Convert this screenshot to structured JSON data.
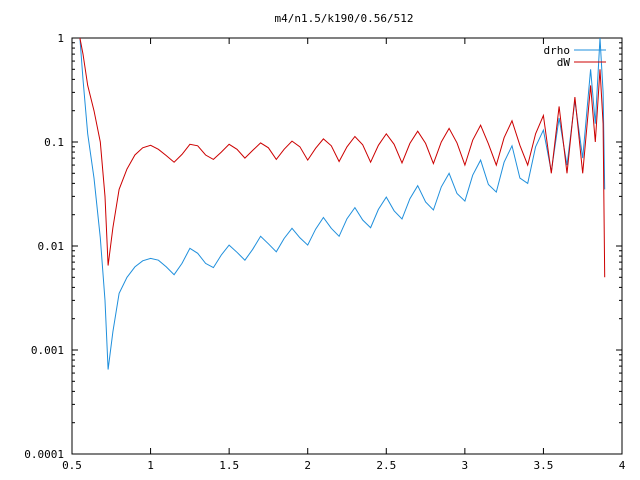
{
  "chart_data": {
    "type": "line",
    "title": "m4/n1.5/k190/0.56/512",
    "xlabel": "",
    "ylabel": "",
    "xlim": [
      0.5,
      4
    ],
    "ylim": [
      0.0001,
      1
    ],
    "yscale": "log",
    "grid": false,
    "legend_position": "top-right",
    "x_ticks": [
      {
        "value": 0.5,
        "label": "0.5"
      },
      {
        "value": 1,
        "label": "1"
      },
      {
        "value": 1.5,
        "label": "1.5"
      },
      {
        "value": 2,
        "label": "2"
      },
      {
        "value": 2.5,
        "label": "2.5"
      },
      {
        "value": 3,
        "label": "3"
      },
      {
        "value": 3.5,
        "label": "3.5"
      },
      {
        "value": 4,
        "label": "4"
      }
    ],
    "y_ticks": [
      {
        "value": 1,
        "label": "1"
      },
      {
        "value": 0.1,
        "label": "0.1"
      },
      {
        "value": 0.01,
        "label": "0.01"
      },
      {
        "value": 0.001,
        "label": "0.001"
      },
      {
        "value": 0.0001,
        "label": "0.0001"
      }
    ],
    "series": [
      {
        "name": "drho",
        "color": "#1f8fdc",
        "x": [
          0.55,
          0.57,
          0.6,
          0.64,
          0.68,
          0.71,
          0.73,
          0.76,
          0.8,
          0.85,
          0.9,
          0.95,
          1.0,
          1.05,
          1.1,
          1.15,
          1.2,
          1.25,
          1.3,
          1.35,
          1.4,
          1.45,
          1.5,
          1.55,
          1.6,
          1.65,
          1.7,
          1.75,
          1.8,
          1.85,
          1.9,
          1.95,
          2.0,
          2.05,
          2.1,
          2.15,
          2.2,
          2.25,
          2.3,
          2.35,
          2.4,
          2.45,
          2.5,
          2.55,
          2.6,
          2.65,
          2.7,
          2.75,
          2.8,
          2.85,
          2.9,
          2.95,
          3.0,
          3.05,
          3.1,
          3.15,
          3.2,
          3.25,
          3.3,
          3.35,
          3.4,
          3.45,
          3.5,
          3.55,
          3.6,
          3.65,
          3.7,
          3.75,
          3.8,
          3.83,
          3.86,
          3.88,
          3.89
        ],
        "y": [
          1.0,
          0.4,
          0.12,
          0.045,
          0.012,
          0.003,
          0.00065,
          0.0015,
          0.0035,
          0.005,
          0.0063,
          0.0072,
          0.0076,
          0.0073,
          0.0063,
          0.0053,
          0.0068,
          0.0095,
          0.0085,
          0.0068,
          0.0062,
          0.0082,
          0.0102,
          0.0087,
          0.0073,
          0.0093,
          0.0124,
          0.0105,
          0.0088,
          0.0118,
          0.0148,
          0.012,
          0.0102,
          0.0145,
          0.0188,
          0.0148,
          0.0124,
          0.0183,
          0.0234,
          0.0178,
          0.015,
          0.0225,
          0.0295,
          0.0218,
          0.0182,
          0.0285,
          0.038,
          0.0265,
          0.0222,
          0.037,
          0.05,
          0.032,
          0.027,
          0.048,
          0.067,
          0.039,
          0.033,
          0.064,
          0.092,
          0.045,
          0.04,
          0.09,
          0.13,
          0.052,
          0.17,
          0.06,
          0.25,
          0.07,
          0.5,
          0.15,
          1.0,
          0.3,
          0.035
        ]
      },
      {
        "name": "dW",
        "color": "#cc0000",
        "x": [
          0.55,
          0.57,
          0.6,
          0.64,
          0.68,
          0.71,
          0.73,
          0.76,
          0.8,
          0.85,
          0.9,
          0.95,
          1.0,
          1.05,
          1.1,
          1.15,
          1.2,
          1.25,
          1.3,
          1.35,
          1.4,
          1.45,
          1.5,
          1.55,
          1.6,
          1.65,
          1.7,
          1.75,
          1.8,
          1.85,
          1.9,
          1.95,
          2.0,
          2.05,
          2.1,
          2.15,
          2.2,
          2.25,
          2.3,
          2.35,
          2.4,
          2.45,
          2.5,
          2.55,
          2.6,
          2.65,
          2.7,
          2.75,
          2.8,
          2.85,
          2.9,
          2.95,
          3.0,
          3.05,
          3.1,
          3.15,
          3.2,
          3.25,
          3.3,
          3.35,
          3.4,
          3.45,
          3.5,
          3.55,
          3.6,
          3.65,
          3.7,
          3.75,
          3.8,
          3.83,
          3.86,
          3.88,
          3.89
        ],
        "y": [
          1.0,
          0.7,
          0.35,
          0.2,
          0.1,
          0.03,
          0.0065,
          0.015,
          0.035,
          0.055,
          0.075,
          0.088,
          0.093,
          0.085,
          0.074,
          0.064,
          0.076,
          0.095,
          0.092,
          0.075,
          0.068,
          0.08,
          0.095,
          0.085,
          0.07,
          0.083,
          0.098,
          0.088,
          0.068,
          0.085,
          0.102,
          0.09,
          0.067,
          0.087,
          0.107,
          0.092,
          0.065,
          0.09,
          0.113,
          0.094,
          0.064,
          0.093,
          0.12,
          0.095,
          0.063,
          0.097,
          0.127,
          0.097,
          0.062,
          0.1,
          0.135,
          0.098,
          0.06,
          0.104,
          0.145,
          0.096,
          0.06,
          0.11,
          0.16,
          0.093,
          0.06,
          0.12,
          0.18,
          0.05,
          0.22,
          0.05,
          0.27,
          0.05,
          0.35,
          0.1,
          0.5,
          0.15,
          0.005
        ]
      }
    ]
  }
}
